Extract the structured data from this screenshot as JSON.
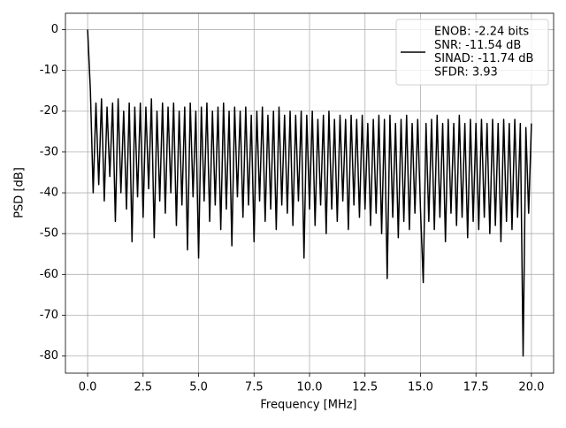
{
  "chart_data": {
    "type": "line",
    "xlabel": "Frequency [MHz]",
    "ylabel": "PSD [dB]",
    "xlim": [
      -1.0,
      21.0
    ],
    "ylim": [
      -84.2,
      4.0
    ],
    "xticks": [
      {
        "value": 0,
        "label": "0.0"
      },
      {
        "value": 2.5,
        "label": "2.5"
      },
      {
        "value": 5,
        "label": "5.0"
      },
      {
        "value": 7.5,
        "label": "7.5"
      },
      {
        "value": 10,
        "label": "10.0"
      },
      {
        "value": 12.5,
        "label": "12.5"
      },
      {
        "value": 15,
        "label": "15.0"
      },
      {
        "value": 17.5,
        "label": "17.5"
      },
      {
        "value": 20,
        "label": "20.0"
      }
    ],
    "yticks": [
      0,
      -10,
      -20,
      -30,
      -40,
      -50,
      -60,
      -70,
      -80
    ],
    "grid": true,
    "legend_loc": "upper right",
    "x": [
      0,
      0.125,
      0.25,
      0.375,
      0.5,
      0.625,
      0.75,
      0.875,
      1,
      1.125,
      1.25,
      1.375,
      1.5,
      1.625,
      1.75,
      1.875,
      2,
      2.125,
      2.25,
      2.375,
      2.5,
      2.625,
      2.75,
      2.875,
      3,
      3.125,
      3.25,
      3.375,
      3.5,
      3.625,
      3.75,
      3.875,
      4,
      4.125,
      4.25,
      4.375,
      4.5,
      4.625,
      4.75,
      4.875,
      5,
      5.125,
      5.25,
      5.375,
      5.5,
      5.625,
      5.75,
      5.875,
      6,
      6.125,
      6.25,
      6.375,
      6.5,
      6.625,
      6.75,
      6.875,
      7,
      7.125,
      7.25,
      7.375,
      7.5,
      7.625,
      7.75,
      7.875,
      8,
      8.125,
      8.25,
      8.375,
      8.5,
      8.625,
      8.75,
      8.875,
      9,
      9.125,
      9.25,
      9.375,
      9.5,
      9.625,
      9.75,
      9.875,
      10,
      10.125,
      10.25,
      10.375,
      10.5,
      10.625,
      10.75,
      10.875,
      11,
      11.125,
      11.25,
      11.375,
      11.5,
      11.625,
      11.75,
      11.875,
      12,
      12.125,
      12.25,
      12.375,
      12.5,
      12.625,
      12.75,
      12.875,
      13,
      13.125,
      13.25,
      13.375,
      13.5,
      13.625,
      13.75,
      13.875,
      14,
      14.125,
      14.25,
      14.375,
      14.5,
      14.625,
      14.75,
      14.875,
      15,
      15.125,
      15.25,
      15.375,
      15.5,
      15.625,
      15.75,
      15.875,
      16,
      16.125,
      16.25,
      16.375,
      16.5,
      16.625,
      16.75,
      16.875,
      17,
      17.125,
      17.25,
      17.375,
      17.5,
      17.625,
      17.75,
      17.875,
      18,
      18.125,
      18.25,
      18.375,
      18.5,
      18.625,
      18.75,
      18.875,
      19,
      19.125,
      19.25,
      19.375,
      19.5,
      19.625,
      19.75,
      19.875,
      20
    ],
    "series": [
      {
        "name": [
          "ENOB: -2.24 bits",
          "SNR: -11.54 dB",
          "SINAD: -11.74 dB",
          "SFDR: 3.93"
        ],
        "color": "#000000",
        "values": [
          0,
          -15,
          -40,
          -18,
          -38,
          -17,
          -42,
          -19,
          -36,
          -18,
          -47,
          -17,
          -40,
          -20,
          -44,
          -18,
          -52,
          -19,
          -41,
          -18,
          -46,
          -19,
          -39,
          -17,
          -51,
          -20,
          -42,
          -18,
          -45,
          -19,
          -40,
          -18,
          -48,
          -20,
          -43,
          -19,
          -54,
          -18,
          -41,
          -20,
          -56,
          -19,
          -42,
          -18,
          -47,
          -20,
          -43,
          -19,
          -49,
          -18,
          -44,
          -20,
          -53,
          -19,
          -41,
          -20,
          -46,
          -19,
          -43,
          -21,
          -52,
          -20,
          -42,
          -19,
          -47,
          -21,
          -44,
          -20,
          -49,
          -19,
          -43,
          -21,
          -45,
          -20,
          -48,
          -21,
          -42,
          -20,
          -56,
          -21,
          -44,
          -20,
          -48,
          -22,
          -43,
          -21,
          -50,
          -20,
          -44,
          -22,
          -47,
          -21,
          -42,
          -22,
          -49,
          -21,
          -43,
          -22,
          -46,
          -21,
          -44,
          -23,
          -48,
          -22,
          -45,
          -21,
          -50,
          -22,
          -61,
          -21,
          -46,
          -23,
          -51,
          -22,
          -47,
          -21,
          -49,
          -23,
          -45,
          -22,
          -44,
          -62,
          -23,
          -47,
          -22,
          -49,
          -21,
          -46,
          -23,
          -52,
          -22,
          -45,
          -23,
          -48,
          -21,
          -46,
          -23,
          -51,
          -22,
          -47,
          -23,
          -49,
          -22,
          -46,
          -23,
          -50,
          -22,
          -48,
          -23,
          -52,
          -22,
          -47,
          -23,
          -49,
          -22,
          -46,
          -23,
          -80,
          -24,
          -45,
          -23
        ]
      }
    ]
  }
}
